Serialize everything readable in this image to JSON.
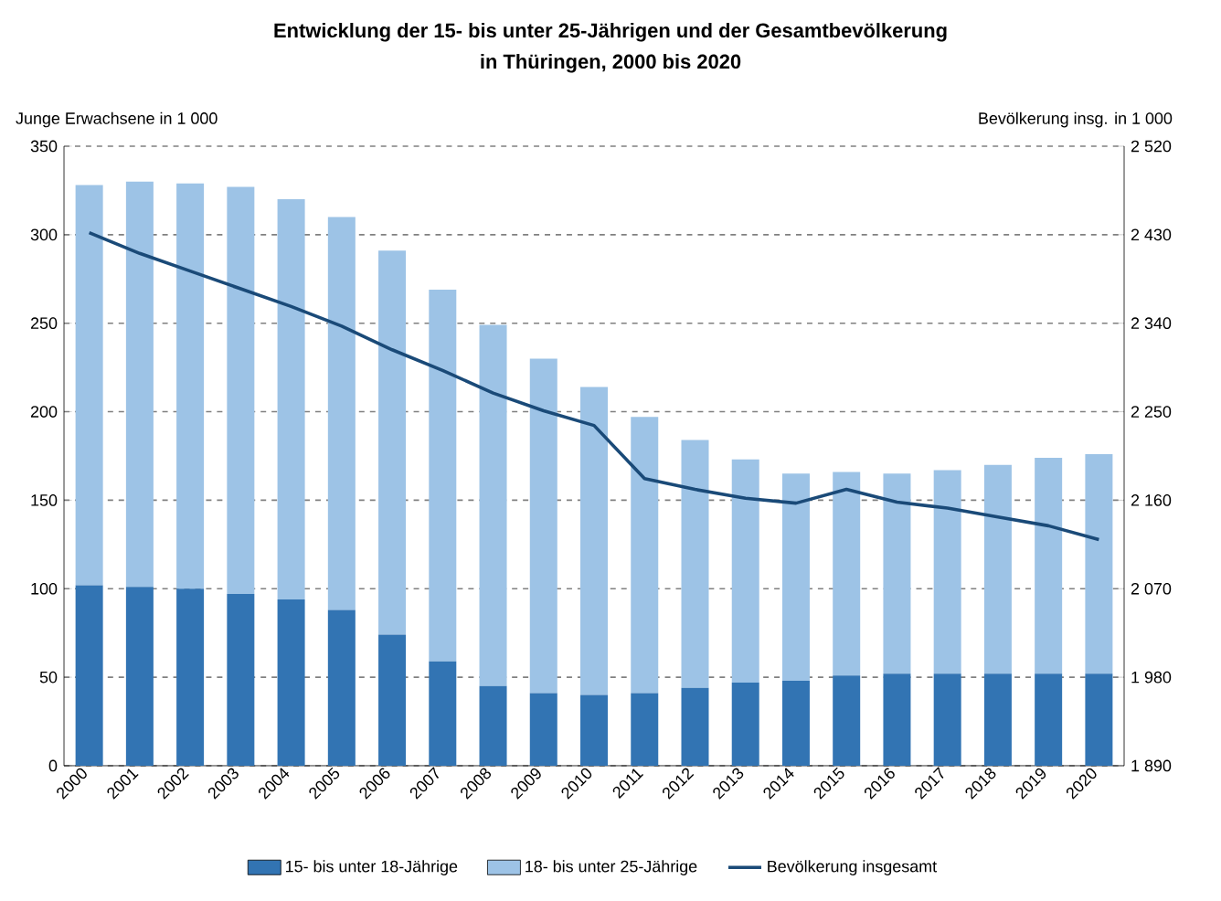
{
  "chart_data": {
    "type": "bar",
    "title": "Entwicklung der 15- bis unter 25-Jährigen und der Gesamtbevölkerung",
    "subtitle": "in Thüringen, 2000 bis 2020",
    "ylabel": "Junge Erwachsene in 1 000",
    "y2label": "Bevölkerung insg. in 1 000",
    "categories": [
      "2000",
      "2001",
      "2002",
      "2003",
      "2004",
      "2005",
      "2006",
      "2007",
      "2008",
      "2009",
      "2010",
      "2011",
      "2012",
      "2013",
      "2014",
      "2015",
      "2016",
      "2017",
      "2018",
      "2019",
      "2020"
    ],
    "stacked": true,
    "series": [
      {
        "name": "15- bis unter 18-Jährige",
        "color": "#3274b3",
        "values": [
          102,
          101,
          100,
          97,
          94,
          88,
          74,
          59,
          45,
          41,
          40,
          41,
          44,
          47,
          48,
          51,
          52,
          52,
          52,
          52,
          52
        ]
      },
      {
        "name": "18- bis unter 25-Jährige",
        "color": "#9dc3e6",
        "values": [
          226,
          229,
          229,
          230,
          226,
          222,
          217,
          210,
          204,
          189,
          174,
          156,
          140,
          126,
          117,
          115,
          113,
          115,
          118,
          122,
          124
        ]
      },
      {
        "name": "Bevölkerung insgesamt",
        "type": "line",
        "axis": "y2",
        "color": "#1a4a78",
        "values": [
          2432,
          2411,
          2393,
          2375,
          2357,
          2337,
          2313,
          2292,
          2269,
          2251,
          2236,
          2182,
          2171,
          2162,
          2157,
          2171,
          2158,
          2152,
          2143,
          2134,
          2120
        ]
      }
    ],
    "ylim": [
      0,
      350
    ],
    "yticks": [
      0,
      50,
      100,
      150,
      200,
      250,
      300,
      350
    ],
    "y2lim": [
      1890,
      2520
    ],
    "y2ticks": [
      {
        "value": 1890,
        "label": "1 890"
      },
      {
        "value": 1980,
        "label": "1 980"
      },
      {
        "value": 2070,
        "label": "2 070"
      },
      {
        "value": 2160,
        "label": "2 160"
      },
      {
        "value": 2250,
        "label": "2 250"
      },
      {
        "value": 2340,
        "label": "2 340"
      },
      {
        "value": 2430,
        "label": "2 430"
      },
      {
        "value": 2520,
        "label": "2 520"
      }
    ],
    "grid": "y",
    "legend": "bottom"
  }
}
